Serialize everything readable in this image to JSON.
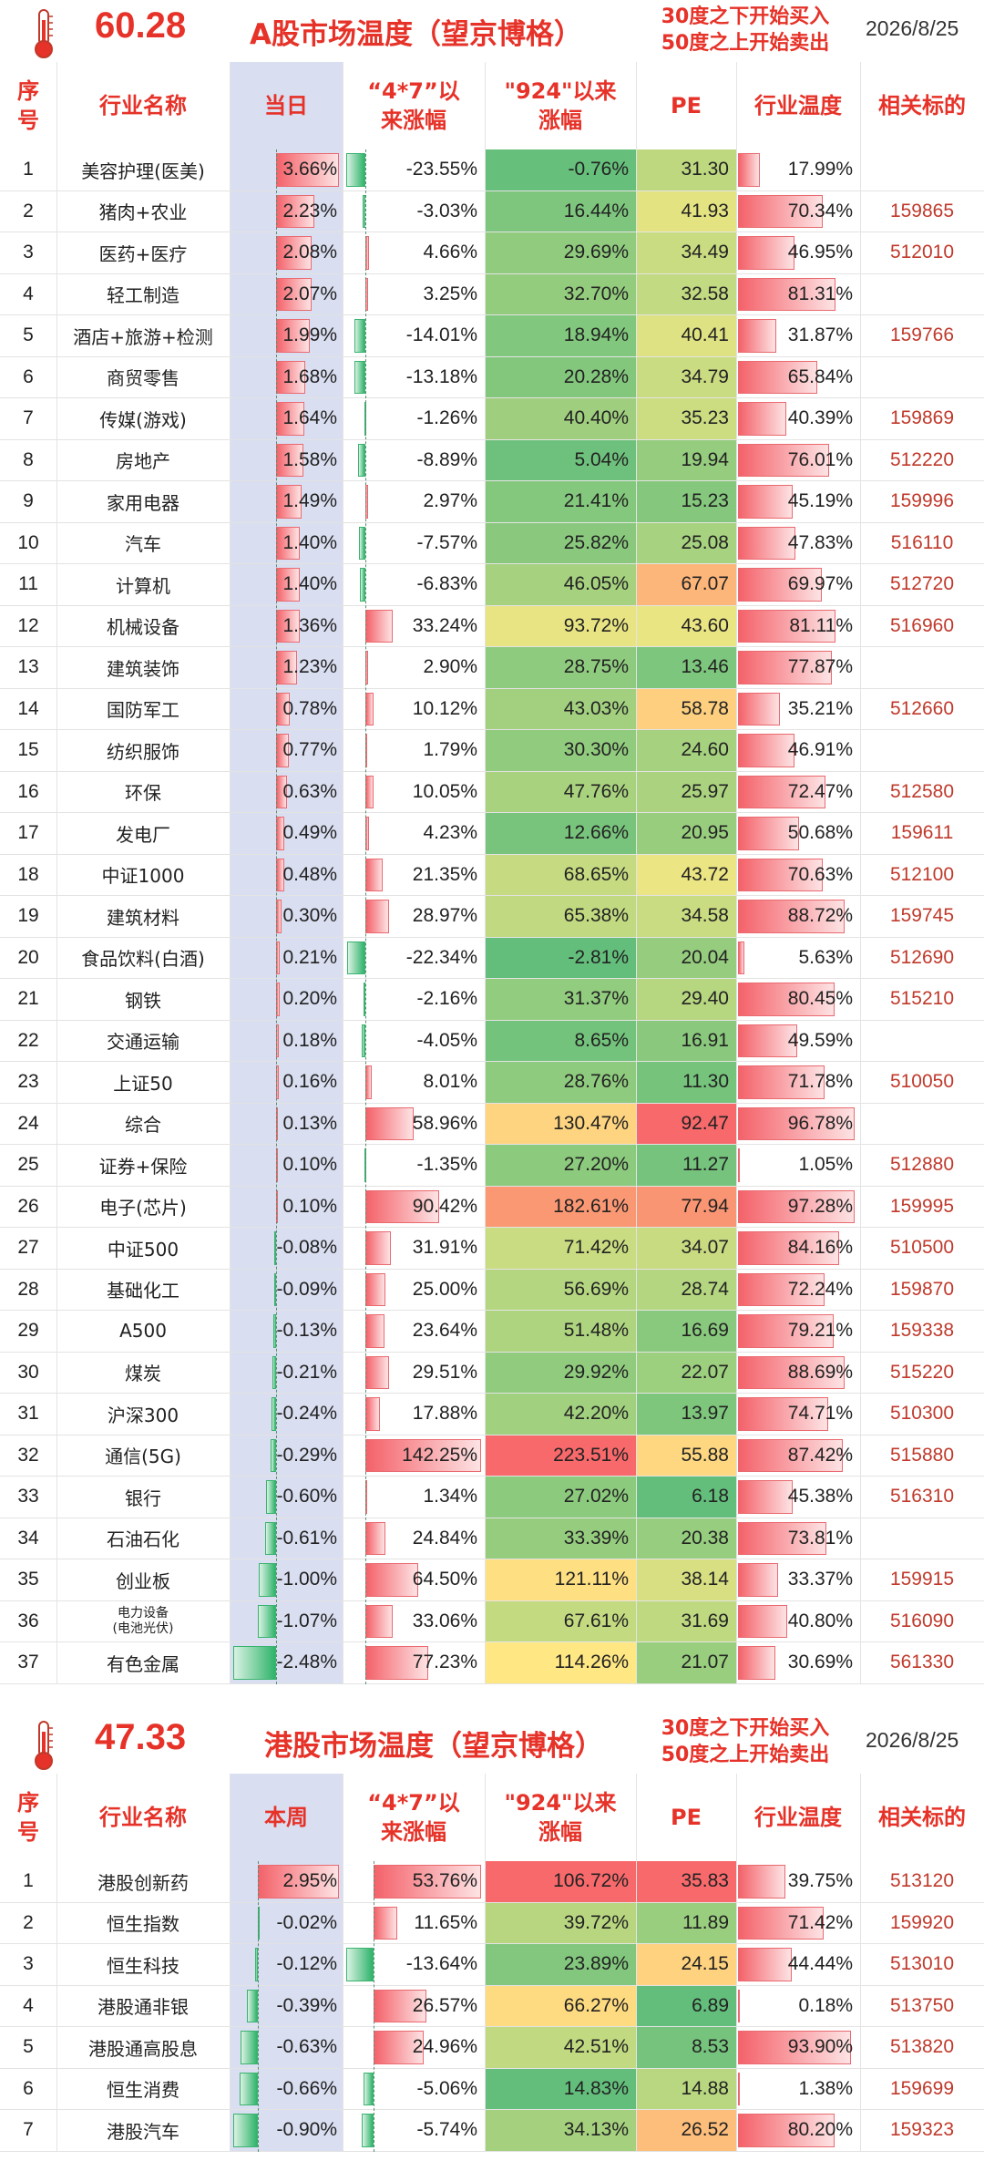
{
  "a_market": {
    "temp_value": "60.28",
    "title": "A股市场温度（望京博格）",
    "rule_line1": "30度之下开始买入",
    "rule_line2": "50度之上开始卖出",
    "date": "2026/8/25",
    "headers": {
      "idx": "序\n号",
      "name": "行业名称",
      "change": "当日",
      "since_47": "“4*7”以\n来涨幅",
      "since_924": "\"924\"以来\n涨幅",
      "pe": "PE",
      "temp": "行业温度",
      "code": "相关标的"
    },
    "rows": [
      {
        "idx": "1",
        "name": "美容护理(医美)",
        "change": "3.66%",
        "since_47": "-23.55%",
        "since_924": "-0.76%",
        "pe": "31.30",
        "temp": "17.99%",
        "code": ""
      },
      {
        "idx": "2",
        "name": "猪肉+农业",
        "change": "2.23%",
        "since_47": "-3.03%",
        "since_924": "16.44%",
        "pe": "41.93",
        "temp": "70.34%",
        "code": "159865"
      },
      {
        "idx": "3",
        "name": "医药+医疗",
        "change": "2.08%",
        "since_47": "4.66%",
        "since_924": "29.69%",
        "pe": "34.49",
        "temp": "46.95%",
        "code": "512010"
      },
      {
        "idx": "4",
        "name": "轻工制造",
        "change": "2.07%",
        "since_47": "3.25%",
        "since_924": "32.70%",
        "pe": "32.58",
        "temp": "81.31%",
        "code": ""
      },
      {
        "idx": "5",
        "name": "酒店+旅游+检测",
        "change": "1.99%",
        "since_47": "-14.01%",
        "since_924": "18.94%",
        "pe": "40.41",
        "temp": "31.87%",
        "code": "159766"
      },
      {
        "idx": "6",
        "name": "商贸零售",
        "change": "1.68%",
        "since_47": "-13.18%",
        "since_924": "20.28%",
        "pe": "34.79",
        "temp": "65.84%",
        "code": ""
      },
      {
        "idx": "7",
        "name": "传媒(游戏)",
        "change": "1.64%",
        "since_47": "-1.26%",
        "since_924": "40.40%",
        "pe": "35.23",
        "temp": "40.39%",
        "code": "159869"
      },
      {
        "idx": "8",
        "name": "房地产",
        "change": "1.58%",
        "since_47": "-8.89%",
        "since_924": "5.04%",
        "pe": "19.94",
        "temp": "76.01%",
        "code": "512220"
      },
      {
        "idx": "9",
        "name": "家用电器",
        "change": "1.49%",
        "since_47": "2.97%",
        "since_924": "21.41%",
        "pe": "15.23",
        "temp": "45.19%",
        "code": "159996"
      },
      {
        "idx": "10",
        "name": "汽车",
        "change": "1.40%",
        "since_47": "-7.57%",
        "since_924": "25.82%",
        "pe": "25.08",
        "temp": "47.83%",
        "code": "516110"
      },
      {
        "idx": "11",
        "name": "计算机",
        "change": "1.40%",
        "since_47": "-6.83%",
        "since_924": "46.05%",
        "pe": "67.07",
        "temp": "69.97%",
        "code": "512720"
      },
      {
        "idx": "12",
        "name": "机械设备",
        "change": "1.36%",
        "since_47": "33.24%",
        "since_924": "93.72%",
        "pe": "43.60",
        "temp": "81.11%",
        "code": "516960"
      },
      {
        "idx": "13",
        "name": "建筑装饰",
        "change": "1.23%",
        "since_47": "2.90%",
        "since_924": "28.75%",
        "pe": "13.46",
        "temp": "77.87%",
        "code": ""
      },
      {
        "idx": "14",
        "name": "国防军工",
        "change": "0.78%",
        "since_47": "10.12%",
        "since_924": "43.03%",
        "pe": "58.78",
        "temp": "35.21%",
        "code": "512660"
      },
      {
        "idx": "15",
        "name": "纺织服饰",
        "change": "0.77%",
        "since_47": "1.79%",
        "since_924": "30.30%",
        "pe": "24.60",
        "temp": "46.91%",
        "code": ""
      },
      {
        "idx": "16",
        "name": "环保",
        "change": "0.63%",
        "since_47": "10.05%",
        "since_924": "47.76%",
        "pe": "25.97",
        "temp": "72.47%",
        "code": "512580"
      },
      {
        "idx": "17",
        "name": "发电厂",
        "change": "0.49%",
        "since_47": "4.23%",
        "since_924": "12.66%",
        "pe": "20.95",
        "temp": "50.68%",
        "code": "159611"
      },
      {
        "idx": "18",
        "name": "中证1000",
        "change": "0.48%",
        "since_47": "21.35%",
        "since_924": "68.65%",
        "pe": "43.72",
        "temp": "70.63%",
        "code": "512100"
      },
      {
        "idx": "19",
        "name": "建筑材料",
        "change": "0.30%",
        "since_47": "28.97%",
        "since_924": "65.38%",
        "pe": "34.58",
        "temp": "88.72%",
        "code": "159745"
      },
      {
        "idx": "20",
        "name": "食品饮料(白酒)",
        "change": "0.21%",
        "since_47": "-22.34%",
        "since_924": "-2.81%",
        "pe": "20.04",
        "temp": "5.63%",
        "code": "512690"
      },
      {
        "idx": "21",
        "name": "钢铁",
        "change": "0.20%",
        "since_47": "-2.16%",
        "since_924": "31.37%",
        "pe": "29.40",
        "temp": "80.45%",
        "code": "515210"
      },
      {
        "idx": "22",
        "name": "交通运输",
        "change": "0.18%",
        "since_47": "-4.05%",
        "since_924": "8.65%",
        "pe": "16.91",
        "temp": "49.59%",
        "code": ""
      },
      {
        "idx": "23",
        "name": "上证50",
        "change": "0.16%",
        "since_47": "8.01%",
        "since_924": "28.76%",
        "pe": "11.30",
        "temp": "71.78%",
        "code": "510050"
      },
      {
        "idx": "24",
        "name": "综合",
        "change": "0.13%",
        "since_47": "58.96%",
        "since_924": "130.47%",
        "pe": "92.47",
        "temp": "96.78%",
        "code": ""
      },
      {
        "idx": "25",
        "name": "证券+保险",
        "change": "0.10%",
        "since_47": "-1.35%",
        "since_924": "27.20%",
        "pe": "11.27",
        "temp": "1.05%",
        "code": "512880"
      },
      {
        "idx": "26",
        "name": "电子(芯片)",
        "change": "0.10%",
        "since_47": "90.42%",
        "since_924": "182.61%",
        "pe": "77.94",
        "temp": "97.28%",
        "code": "159995"
      },
      {
        "idx": "27",
        "name": "中证500",
        "change": "-0.08%",
        "since_47": "31.91%",
        "since_924": "71.42%",
        "pe": "34.07",
        "temp": "84.16%",
        "code": "510500"
      },
      {
        "idx": "28",
        "name": "基础化工",
        "change": "-0.09%",
        "since_47": "25.00%",
        "since_924": "56.69%",
        "pe": "28.74",
        "temp": "72.24%",
        "code": "159870"
      },
      {
        "idx": "29",
        "name": "A500",
        "change": "-0.13%",
        "since_47": "23.64%",
        "since_924": "51.48%",
        "pe": "16.69",
        "temp": "79.21%",
        "code": "159338"
      },
      {
        "idx": "30",
        "name": "煤炭",
        "change": "-0.21%",
        "since_47": "29.51%",
        "since_924": "29.92%",
        "pe": "22.07",
        "temp": "88.69%",
        "code": "515220"
      },
      {
        "idx": "31",
        "name": "沪深300",
        "change": "-0.24%",
        "since_47": "17.88%",
        "since_924": "42.20%",
        "pe": "13.97",
        "temp": "74.71%",
        "code": "510300"
      },
      {
        "idx": "32",
        "name": "通信(5G)",
        "change": "-0.29%",
        "since_47": "142.25%",
        "since_924": "223.51%",
        "pe": "55.88",
        "temp": "87.42%",
        "code": "515880"
      },
      {
        "idx": "33",
        "name": "银行",
        "change": "-0.60%",
        "since_47": "1.34%",
        "since_924": "27.02%",
        "pe": "6.18",
        "temp": "45.38%",
        "code": "516310"
      },
      {
        "idx": "34",
        "name": "石油石化",
        "change": "-0.61%",
        "since_47": "24.84%",
        "since_924": "33.39%",
        "pe": "20.38",
        "temp": "73.81%",
        "code": ""
      },
      {
        "idx": "35",
        "name": "创业板",
        "change": "-1.00%",
        "since_47": "64.50%",
        "since_924": "121.11%",
        "pe": "38.14",
        "temp": "33.37%",
        "code": "159915"
      },
      {
        "idx": "36",
        "name": "电力设备\n(电池光伏)",
        "change": "-1.07%",
        "since_47": "33.06%",
        "since_924": "67.61%",
        "pe": "31.69",
        "temp": "40.80%",
        "code": "516090"
      },
      {
        "idx": "37",
        "name": "有色金属",
        "change": "-2.48%",
        "since_47": "77.23%",
        "since_924": "114.26%",
        "pe": "21.07",
        "temp": "30.69%",
        "code": "561330"
      }
    ]
  },
  "hk_market": {
    "temp_value": "47.33",
    "title": "港股市场温度（望京博格）",
    "rule_line1": "30度之下开始买入",
    "rule_line2": "50度之上开始卖出",
    "date": "2026/8/25",
    "headers": {
      "idx": "序\n号",
      "name": "行业名称",
      "change": "本周",
      "since_47": "“4*7”以\n来涨幅",
      "since_924": "\"924\"以来\n涨幅",
      "pe": "PE",
      "temp": "行业温度",
      "code": "相关标的"
    },
    "rows": [
      {
        "idx": "1",
        "name": "港股创新药",
        "change": "2.95%",
        "since_47": "53.76%",
        "since_924": "106.72%",
        "pe": "35.83",
        "temp": "39.75%",
        "code": "513120"
      },
      {
        "idx": "2",
        "name": "恒生指数",
        "change": "-0.02%",
        "since_47": "11.65%",
        "since_924": "39.72%",
        "pe": "11.89",
        "temp": "71.42%",
        "code": "159920"
      },
      {
        "idx": "3",
        "name": "恒生科技",
        "change": "-0.12%",
        "since_47": "-13.64%",
        "since_924": "23.89%",
        "pe": "24.15",
        "temp": "44.44%",
        "code": "513010"
      },
      {
        "idx": "4",
        "name": "港股通非银",
        "change": "-0.39%",
        "since_47": "26.57%",
        "since_924": "66.27%",
        "pe": "6.89",
        "temp": "0.18%",
        "code": "513750"
      },
      {
        "idx": "5",
        "name": "港股通高股息",
        "change": "-0.63%",
        "since_47": "24.96%",
        "since_924": "42.51%",
        "pe": "8.53",
        "temp": "93.90%",
        "code": "513820"
      },
      {
        "idx": "6",
        "name": "恒生消费",
        "change": "-0.66%",
        "since_47": "-5.06%",
        "since_924": "14.83%",
        "pe": "14.88",
        "temp": "1.38%",
        "code": "159699"
      },
      {
        "idx": "7",
        "name": "港股汽车",
        "change": "-0.90%",
        "since_47": "-5.74%",
        "since_924": "34.13%",
        "pe": "26.52",
        "temp": "80.20%",
        "code": "159323"
      }
    ]
  },
  "colors": {
    "accent_red": "#e63228",
    "bar_red": "#f4626a",
    "bar_green": "#2fb36a",
    "today_col_bg": "#d9def0"
  }
}
